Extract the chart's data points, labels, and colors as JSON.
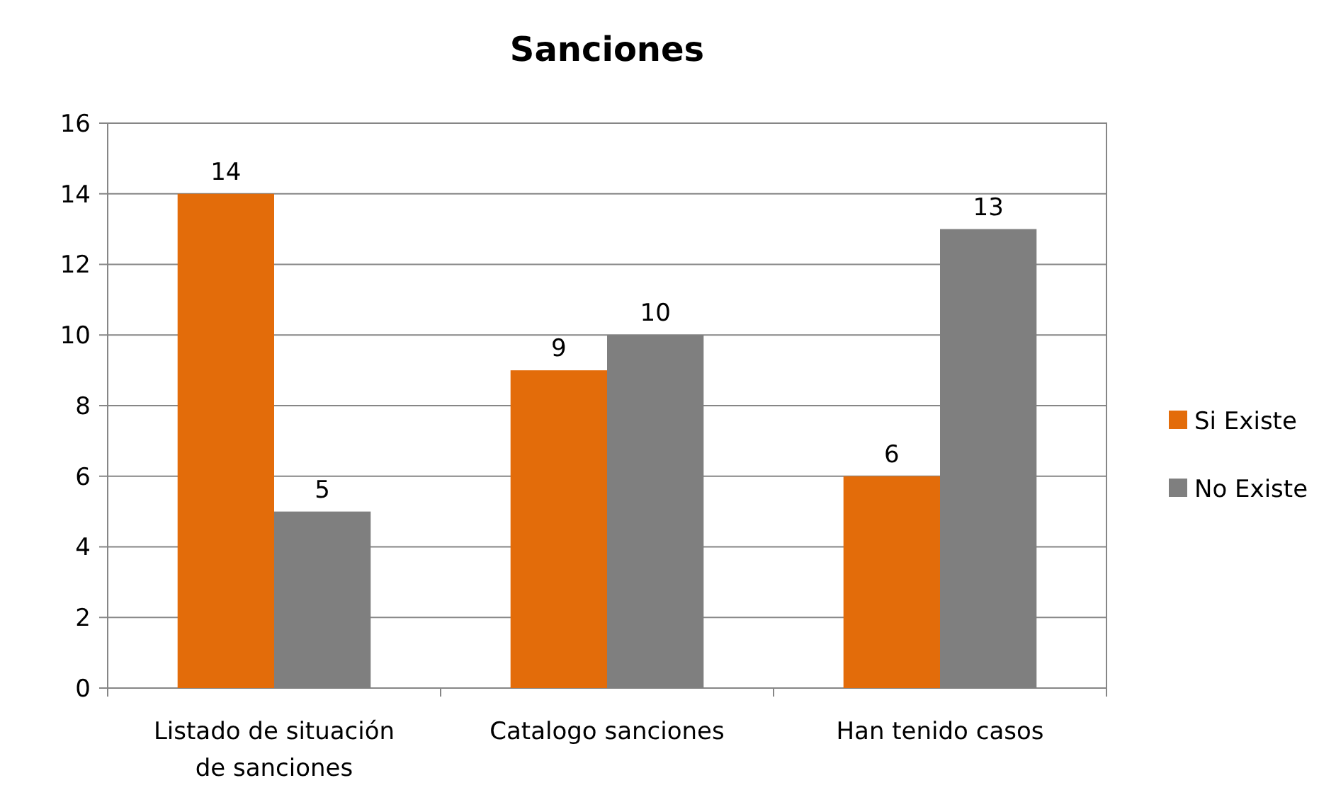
{
  "chart_data": {
    "type": "bar",
    "title": "Sanciones",
    "categories": [
      "Listado de situación de sanciones",
      "Catalogo sanciones",
      "Han tenido casos"
    ],
    "series": [
      {
        "name": "Si Existe",
        "color": "#e36c0a",
        "values": [
          14,
          9,
          6
        ]
      },
      {
        "name": "No Existe",
        "color": "#7f7f7f",
        "values": [
          5,
          10,
          13
        ]
      }
    ],
    "ylim": [
      0,
      16
    ],
    "yticks": [
      0,
      2,
      4,
      6,
      8,
      10,
      12,
      14,
      16
    ],
    "grid": "y",
    "legend": "right",
    "data_labels": true
  }
}
